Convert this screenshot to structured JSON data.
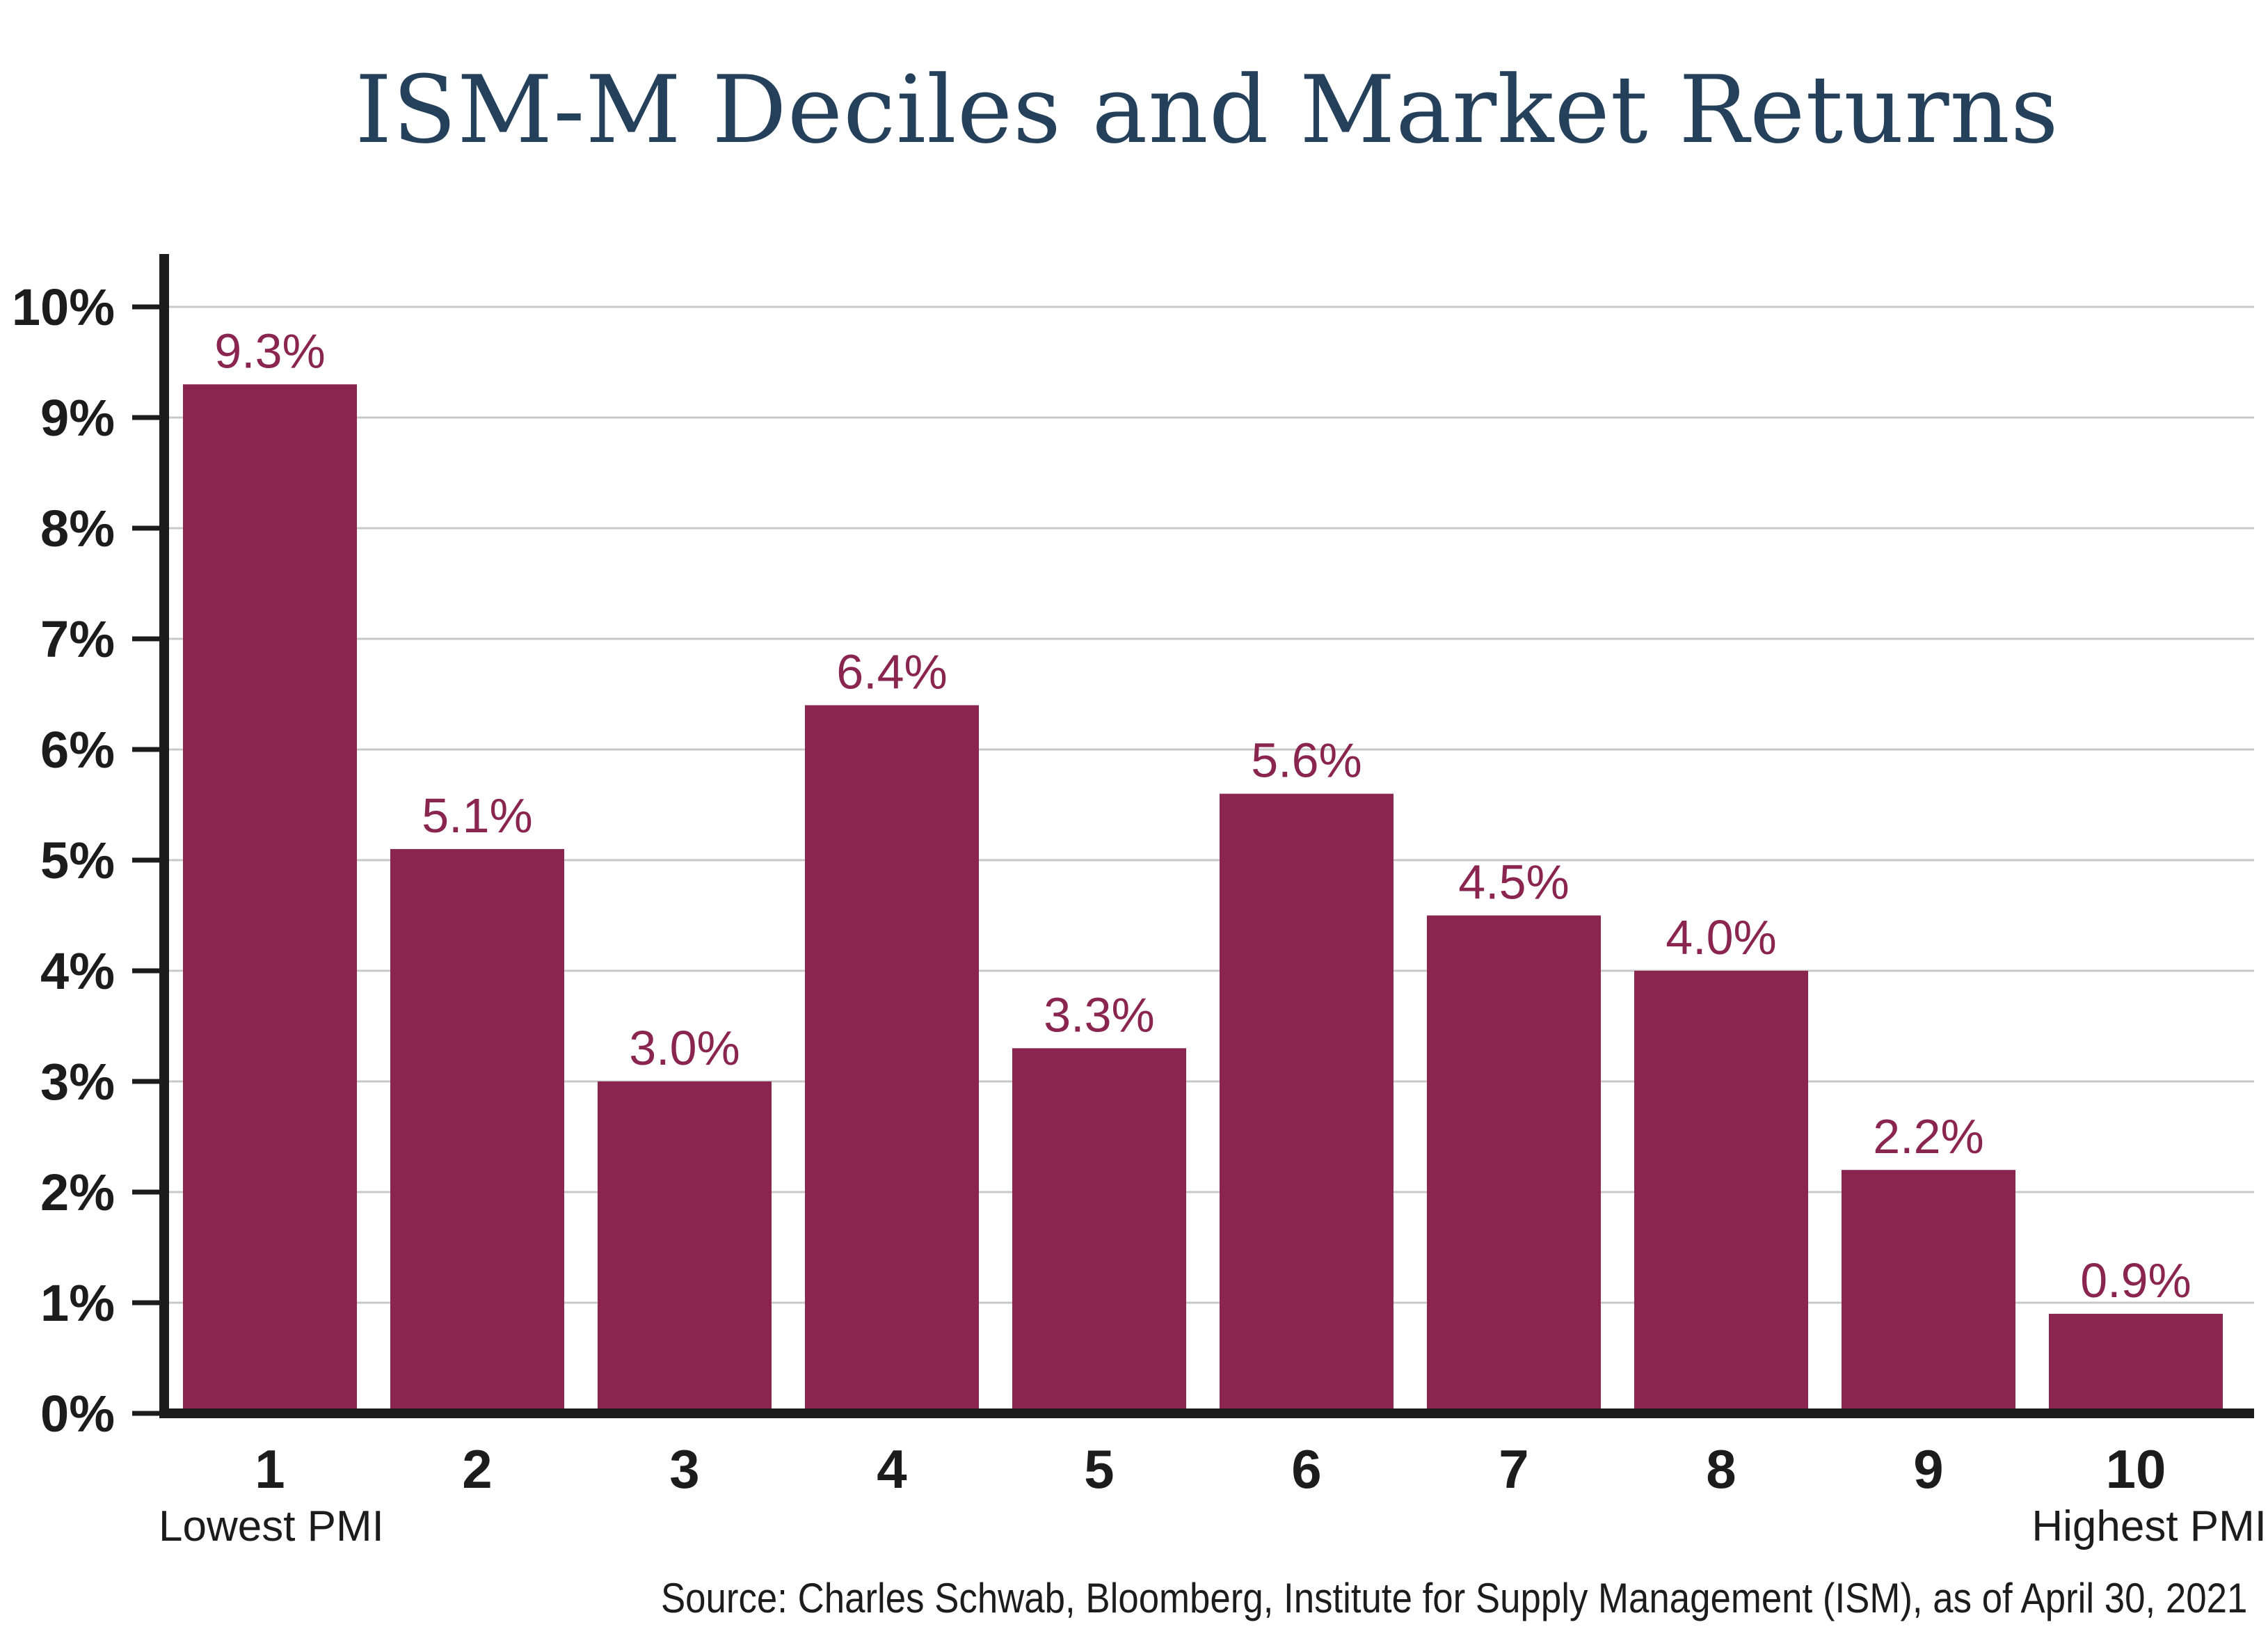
{
  "chart_data": {
    "type": "bar",
    "title": "ISM-M Deciles and Market Returns",
    "categories": [
      "1",
      "2",
      "3",
      "4",
      "5",
      "6",
      "7",
      "8",
      "9",
      "10"
    ],
    "values": [
      9.3,
      5.1,
      3.0,
      6.4,
      3.3,
      5.6,
      4.5,
      4.0,
      2.2,
      0.9
    ],
    "data_labels": [
      "9.3%",
      "5.1%",
      "3.0%",
      "6.4%",
      "3.3%",
      "5.6%",
      "4.5%",
      "4.0%",
      "2.2%",
      "0.9%"
    ],
    "y_ticks": [
      "0%",
      "1%",
      "2%",
      "3%",
      "4%",
      "5%",
      "6%",
      "7%",
      "8%",
      "9%",
      "10%"
    ],
    "ylim": [
      0,
      10
    ],
    "grid": true,
    "x_end_labels": {
      "first": "Lowest PMI",
      "last": "Highest PMI"
    },
    "bar_color": "#8a2550",
    "source": "Source: Charles Schwab, Bloomberg, Institute for Supply Management (ISM), as of April 30, 2021"
  }
}
